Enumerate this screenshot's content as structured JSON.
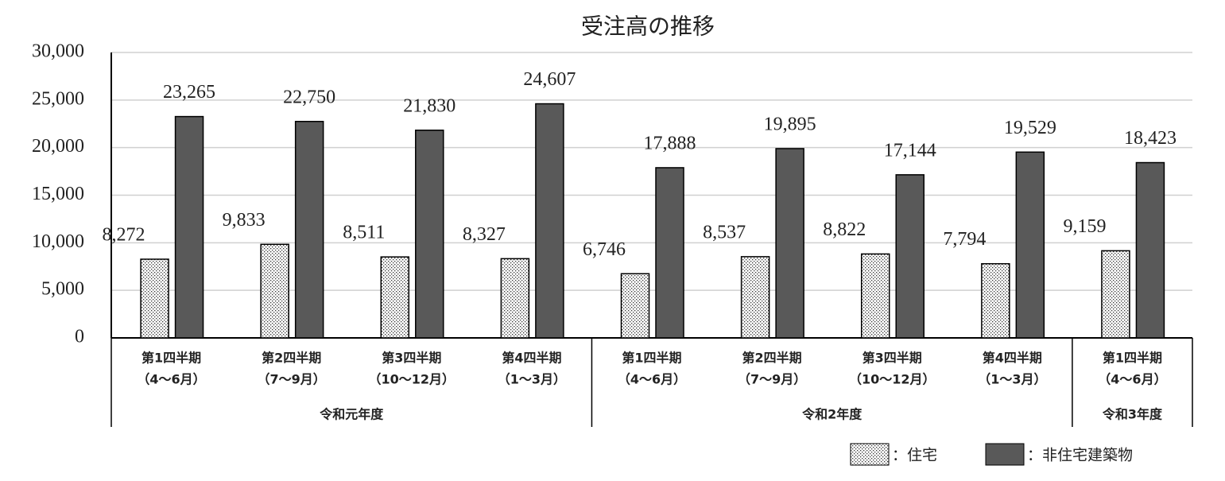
{
  "chart_data": {
    "type": "bar",
    "title": "受注高の推移",
    "groups": [
      {
        "name": "令和元年度",
        "categories": [
          [
            "第1四半期",
            "（4～6月）"
          ],
          [
            "第2四半期",
            "（7～9月）"
          ],
          [
            "第3四半期",
            "（10～12月）"
          ],
          [
            "第4四半期",
            "（1～3月）"
          ]
        ]
      },
      {
        "name": "令和2年度",
        "categories": [
          [
            "第1四半期",
            "（4～6月）"
          ],
          [
            "第2四半期",
            "（7～9月）"
          ],
          [
            "第3四半期",
            "（10～12月）"
          ],
          [
            "第4四半期",
            "（1～3月）"
          ]
        ]
      },
      {
        "name": "令和3年度",
        "categories": [
          [
            "第1四半期",
            "（4～6月）"
          ]
        ]
      }
    ],
    "series": [
      {
        "name": "：住宅",
        "color": "#ffffff",
        "pattern": "dots",
        "values": [
          8272,
          9833,
          8511,
          8327,
          6746,
          8537,
          8822,
          7794,
          9159
        ],
        "value_labels": [
          "8,272",
          "9,833",
          "8,511",
          "8,327",
          "6,746",
          "8,537",
          "8,822",
          "7,794",
          "9,159"
        ]
      },
      {
        "name": "：非住宅建築物",
        "color": "#595959",
        "values": [
          23265,
          22750,
          21830,
          24607,
          17888,
          19895,
          17144,
          19529,
          18423
        ],
        "value_labels": [
          "23,265",
          "22,750",
          "21,830",
          "24,607",
          "17,888",
          "19,895",
          "17,144",
          "19,529",
          "18,423"
        ]
      }
    ],
    "ylim": [
      0,
      30000
    ],
    "yticks": [
      0,
      {
        "value": 5000,
        "label": "5,000"
      },
      {
        "value": 10000,
        "label": "10,000"
      },
      {
        "value": 15000,
        "label": "15,000"
      },
      {
        "value": 20000,
        "label": "20,000"
      },
      {
        "value": 25000,
        "label": "25,000"
      },
      {
        "value": 30000,
        "label": "30,000"
      }
    ],
    "grid": true,
    "legend": "bottom-right"
  }
}
